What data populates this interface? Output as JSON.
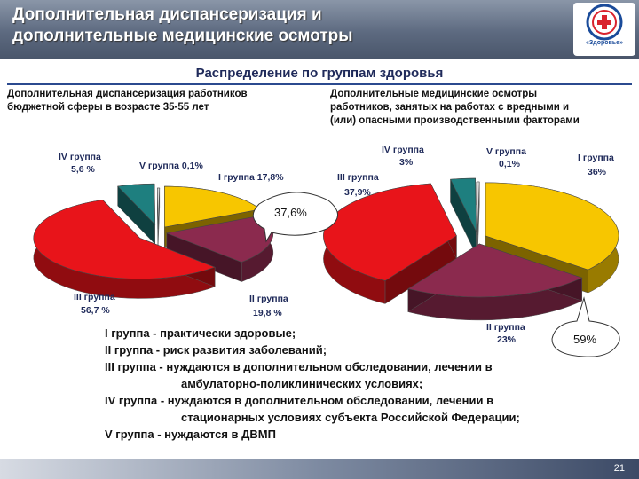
{
  "header": {
    "title_line1": "Дополнительная диспансеризация и",
    "title_line2": "дополнительные медицинские осмотры",
    "logo_text": "«Здоровье»",
    "logo_colors": [
      "#1a4b9a",
      "#d9232e"
    ]
  },
  "subtitle": "Распределение по группам здоровья",
  "colors": {
    "group1": "#f7c600",
    "group2": "#8b2a4e",
    "group3": "#e8141a",
    "group4": "#1e7f7f",
    "group5": "#d8d8d8"
  },
  "chart_data": [
    {
      "type": "pie",
      "title": "Дополнительная диспансеризация работников бюджетной сферы в возрасте 35-55 лет",
      "title_line1": "Дополнительная диспансеризация работников",
      "title_line2": "бюджетной сферы в возрасте 35-55 лет",
      "slices": [
        {
          "name": "I группа",
          "value": 17.8,
          "label_line1": "I группа 17,8%",
          "label_line2": ""
        },
        {
          "name": "II группа",
          "value": 19.8,
          "label_line1": "II группа",
          "label_line2": "19,8 %"
        },
        {
          "name": "III группа",
          "value": 56.7,
          "label_line1": "III группа",
          "label_line2": "56,7 %"
        },
        {
          "name": "IV группа",
          "value": 5.6,
          "label_line1": "IV группа",
          "label_line2": "5,6 %"
        },
        {
          "name": "V группа",
          "value": 0.1,
          "label_line1": "V группа 0,1%",
          "label_line2": ""
        }
      ],
      "callout": "37,6%"
    },
    {
      "type": "pie",
      "title": "Дополнительные медицинские осмотры работников, занятых на работах с вредными и (или) опасными производственными факторами",
      "title_line1": "Дополнительные медицинские осмотры",
      "title_line2": "работников, занятых на работах с вредными и",
      "title_line3": "(или) опасными производственными факторами",
      "slices": [
        {
          "name": "I группа",
          "value": 36,
          "label_line1": "I группа",
          "label_line2": "36%"
        },
        {
          "name": "II группа",
          "value": 23,
          "label_line1": "II группа",
          "label_line2": "23%"
        },
        {
          "name": "III группа",
          "value": 37.9,
          "label_line1": "III группа",
          "label_line2": "37,9%"
        },
        {
          "name": "IV группа",
          "value": 3,
          "label_line1": "IV группа",
          "label_line2": "3%"
        },
        {
          "name": "V группа",
          "value": 0.1,
          "label_line1": "V группа",
          "label_line2": "0,1%"
        }
      ],
      "callout": "59%"
    }
  ],
  "legend": [
    "I группа - практически здоровые;",
    "II группа - риск развития заболеваний;",
    "III группа - нуждаются в дополнительном обследовании, лечении в",
    "амбулаторно-поликлинических условиях;",
    "IV группа - нуждаются в дополнительном обследовании, лечении в",
    "стационарных условиях субъекта Российской Федерации;",
    "V группа - нуждаются в ДВМП"
  ],
  "page_number": "21"
}
